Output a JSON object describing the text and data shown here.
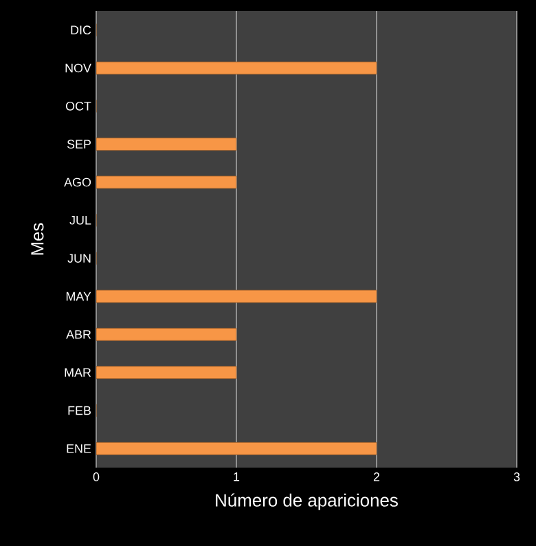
{
  "chart_data": {
    "type": "bar",
    "orientation": "horizontal",
    "xlabel": "Número de apariciones",
    "ylabel": "Mes",
    "categories": [
      "DIC",
      "NOV",
      "OCT",
      "SEP",
      "AGO",
      "JUL",
      "JUN",
      "MAY",
      "ABR",
      "MAR",
      "FEB",
      "ENE"
    ],
    "values": [
      0,
      2,
      0,
      1,
      1,
      0,
      0,
      2,
      1,
      1,
      0,
      2
    ],
    "color": "#f79646",
    "xlim": [
      0,
      3
    ],
    "xticks": [
      0,
      1,
      2,
      3
    ],
    "grid": "x"
  }
}
